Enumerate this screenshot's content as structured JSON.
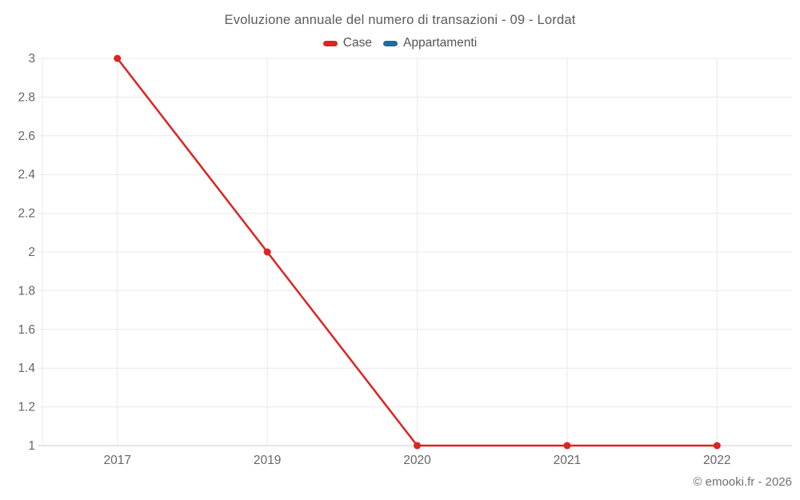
{
  "chart_data": {
    "type": "line",
    "title": "Evoluzione annuale del numero di transazioni - 09 - Lordat",
    "categories": [
      "2017",
      "2019",
      "2020",
      "2021",
      "2022"
    ],
    "series": [
      {
        "name": "Case",
        "color": "#dc2423",
        "values": [
          3,
          2,
          1,
          1,
          1
        ]
      },
      {
        "name": "Appartamenti",
        "color": "#1b6e9d",
        "values": []
      }
    ],
    "xlabel": "",
    "ylabel": "",
    "ylim": [
      1,
      3
    ],
    "ytick_step": 0.2,
    "ytick_labels": [
      "1",
      "1.2",
      "1.4",
      "1.6",
      "1.8",
      "2",
      "2.2",
      "2.4",
      "2.6",
      "2.8",
      "3"
    ],
    "grid": true,
    "legend_position": "top",
    "credit": "© emooki.fr - 2026",
    "colors": {
      "grid_line": "#e9e9e9",
      "axis_line": "#c9ced4",
      "tick_label": "#666666",
      "title_text": "#5b5b5b",
      "legend_text": "#555555",
      "background": "#ffffff"
    }
  }
}
